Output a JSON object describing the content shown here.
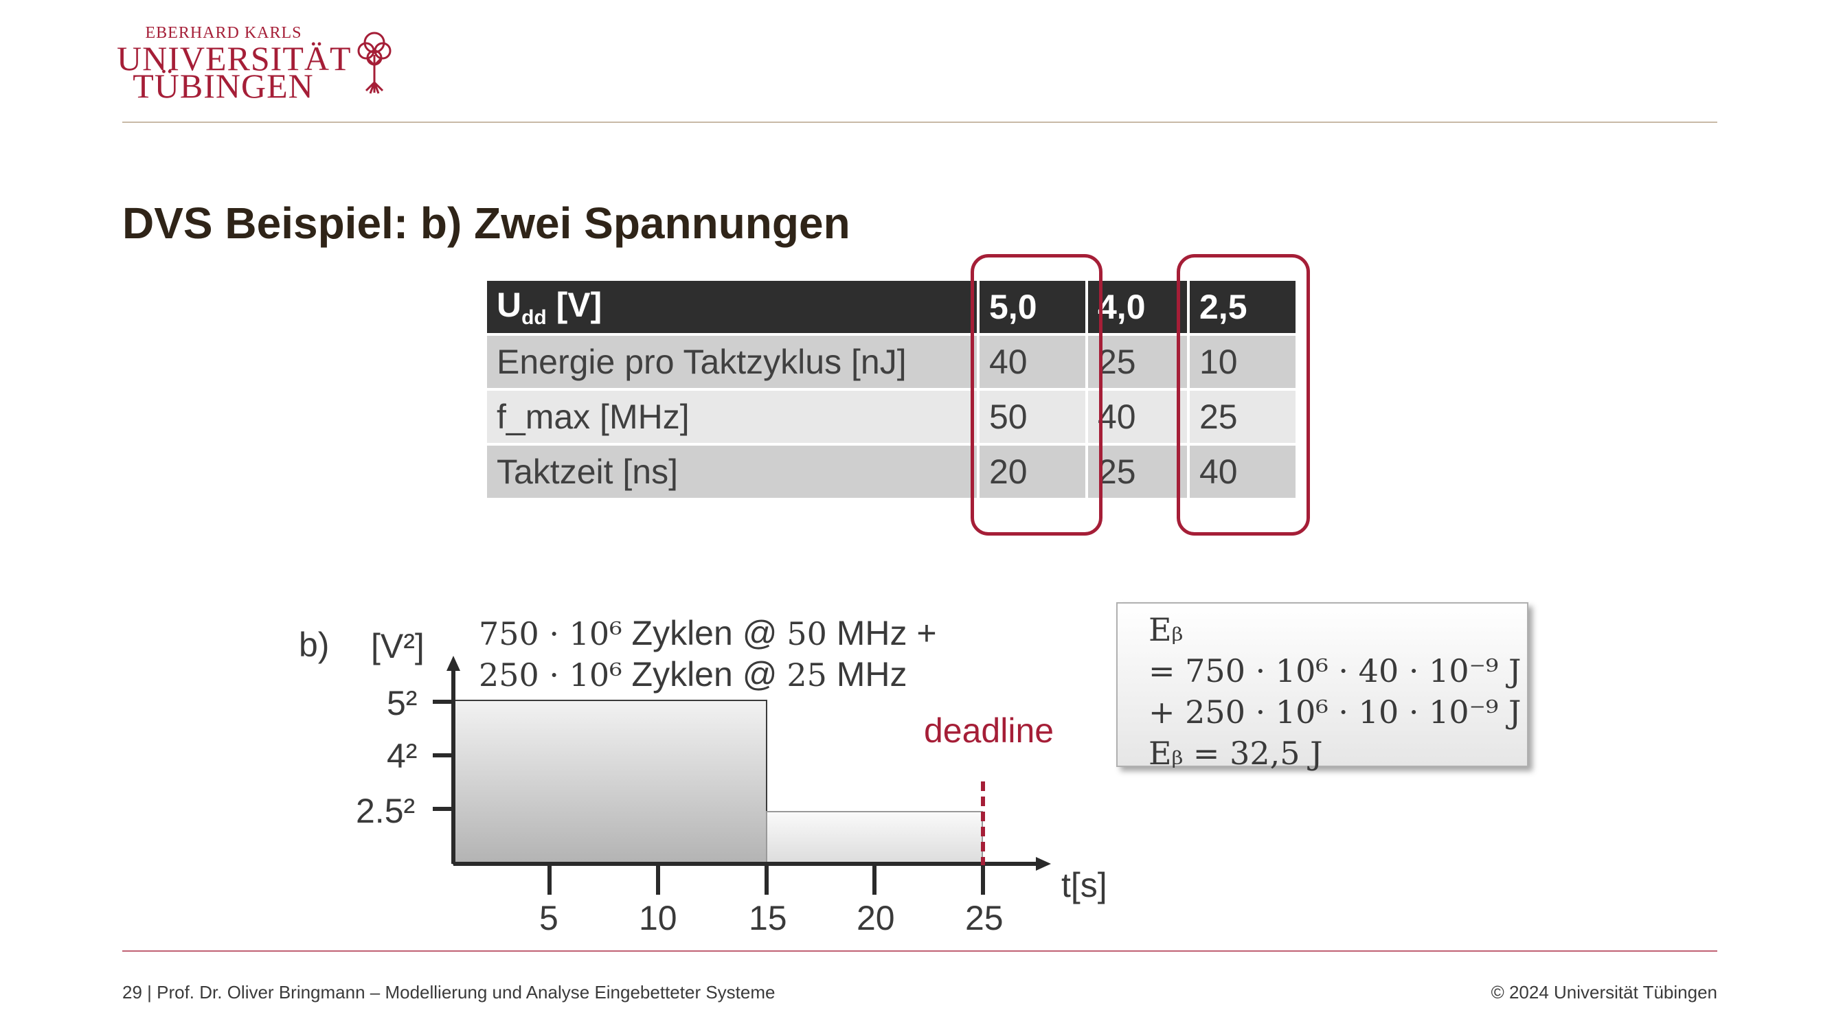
{
  "logo": {
    "line1": "EBERHARD KARLS",
    "line2": "UNIVERSITÄT",
    "line3": "TÜBINGEN",
    "icon": "tree-icon"
  },
  "title": "DVS Beispiel: b) Zwei Spannungen",
  "table": {
    "header": {
      "label_main": "U",
      "label_sub": "dd",
      "label_unit": " [V]",
      "values": [
        "5,0",
        "4,0",
        "2,5"
      ]
    },
    "rows": [
      {
        "label": "Energie pro Taktzyklus [nJ]",
        "values": [
          "40",
          "25",
          "10"
        ]
      },
      {
        "label": "f_max [MHz]",
        "values": [
          "50",
          "40",
          "25"
        ]
      },
      {
        "label": "Taktzeit [ns]",
        "values": [
          "20",
          "25",
          "40"
        ]
      }
    ]
  },
  "diagram": {
    "label_b": "b)",
    "y_unit": "[V²]",
    "x_unit": "t[s]",
    "y_ticks": [
      "5²",
      "4²",
      "2.5²"
    ],
    "x_ticks": [
      "5",
      "10",
      "15",
      "20",
      "25"
    ],
    "desc_line1_math": "750 · 10⁶",
    "desc_line1_text": " Zyklen @ ",
    "desc_line1_freq": "50",
    "desc_line1_end": " MHz +",
    "desc_line2_math": "250 · 10⁶",
    "desc_line2_text": " Zyklen @ ",
    "desc_line2_freq": "25",
    "desc_line2_end": " MHz",
    "deadline": "deadline"
  },
  "equation": {
    "line1": "Eᵦ",
    "line2": "= 750 · 10⁶ · 40 · 10⁻⁹ J",
    "line3": "+ 250 · 10⁶ · 10 · 10⁻⁹ J",
    "line4": "Eᵦ = 32,5 J"
  },
  "footer": {
    "left": "29 | Prof. Dr. Oliver Bringmann – Modellierung und Analyse Eingebetteter Systeme",
    "right": "© 2024 Universität Tübingen"
  },
  "colors": {
    "accent": "#a51e37",
    "header_bg": "#2e2e2e",
    "rule": "#c8b9a6"
  }
}
